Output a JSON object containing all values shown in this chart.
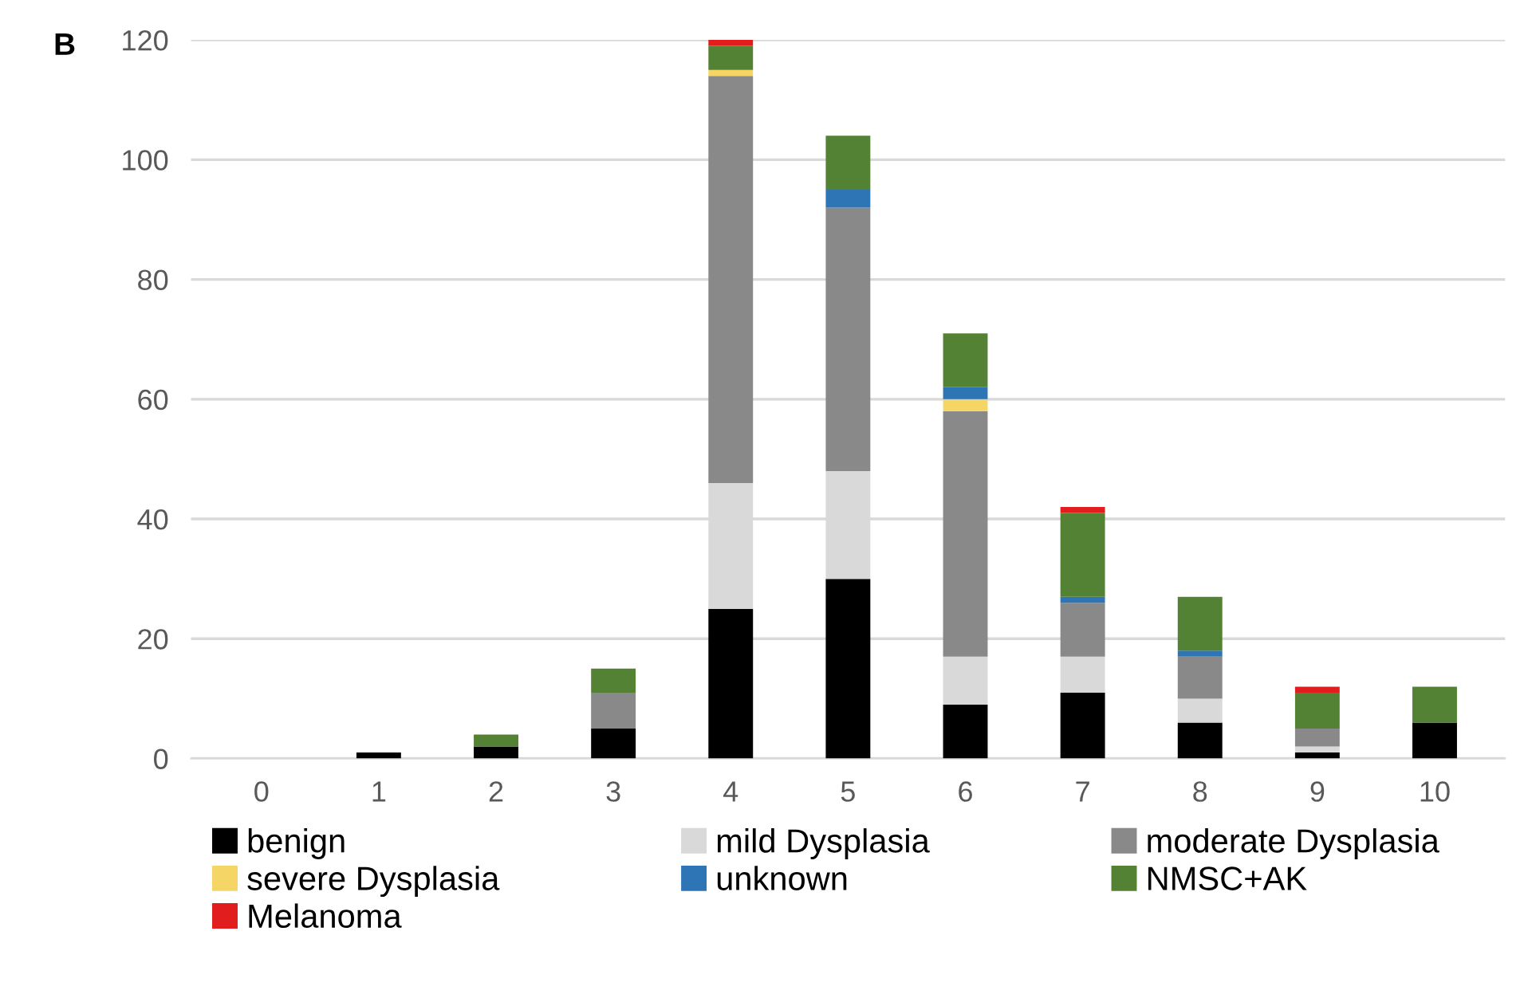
{
  "chart_data": {
    "type": "bar",
    "title": "B",
    "stacked": true,
    "categories": [
      "0",
      "1",
      "2",
      "3",
      "4",
      "5",
      "6",
      "7",
      "8",
      "9",
      "10"
    ],
    "series": [
      {
        "name": "benign",
        "color": "#000000",
        "values": [
          0,
          1,
          2,
          5,
          25,
          30,
          9,
          11,
          6,
          1,
          6
        ]
      },
      {
        "name": "mild Dysplasia",
        "color": "#d9d9d9",
        "values": [
          0,
          0,
          0,
          0,
          21,
          18,
          8,
          6,
          4,
          1,
          0
        ]
      },
      {
        "name": "moderate Dysplasia",
        "color": "#898989",
        "values": [
          0,
          0,
          0,
          6,
          68,
          44,
          41,
          9,
          7,
          3,
          0
        ]
      },
      {
        "name": "severe Dysplasia",
        "color": "#f5d565",
        "values": [
          0,
          0,
          0,
          0,
          1,
          0,
          2,
          0,
          0,
          0,
          0
        ]
      },
      {
        "name": "unknown",
        "color": "#2e75b6",
        "values": [
          0,
          0,
          0,
          0,
          0,
          3,
          2,
          1,
          1,
          0,
          0
        ]
      },
      {
        "name": "NMSC+AK",
        "color": "#548235",
        "values": [
          0,
          0,
          2,
          4,
          4,
          9,
          9,
          14,
          9,
          6,
          6
        ]
      },
      {
        "name": "Melanoma",
        "color": "#e21d1d",
        "values": [
          0,
          0,
          0,
          0,
          1,
          0,
          0,
          1,
          0,
          1,
          0
        ]
      }
    ],
    "ylim": [
      0,
      120
    ],
    "yticks": [
      0,
      20,
      40,
      60,
      80,
      100,
      120
    ],
    "grid": "y",
    "legend": "bottom"
  }
}
